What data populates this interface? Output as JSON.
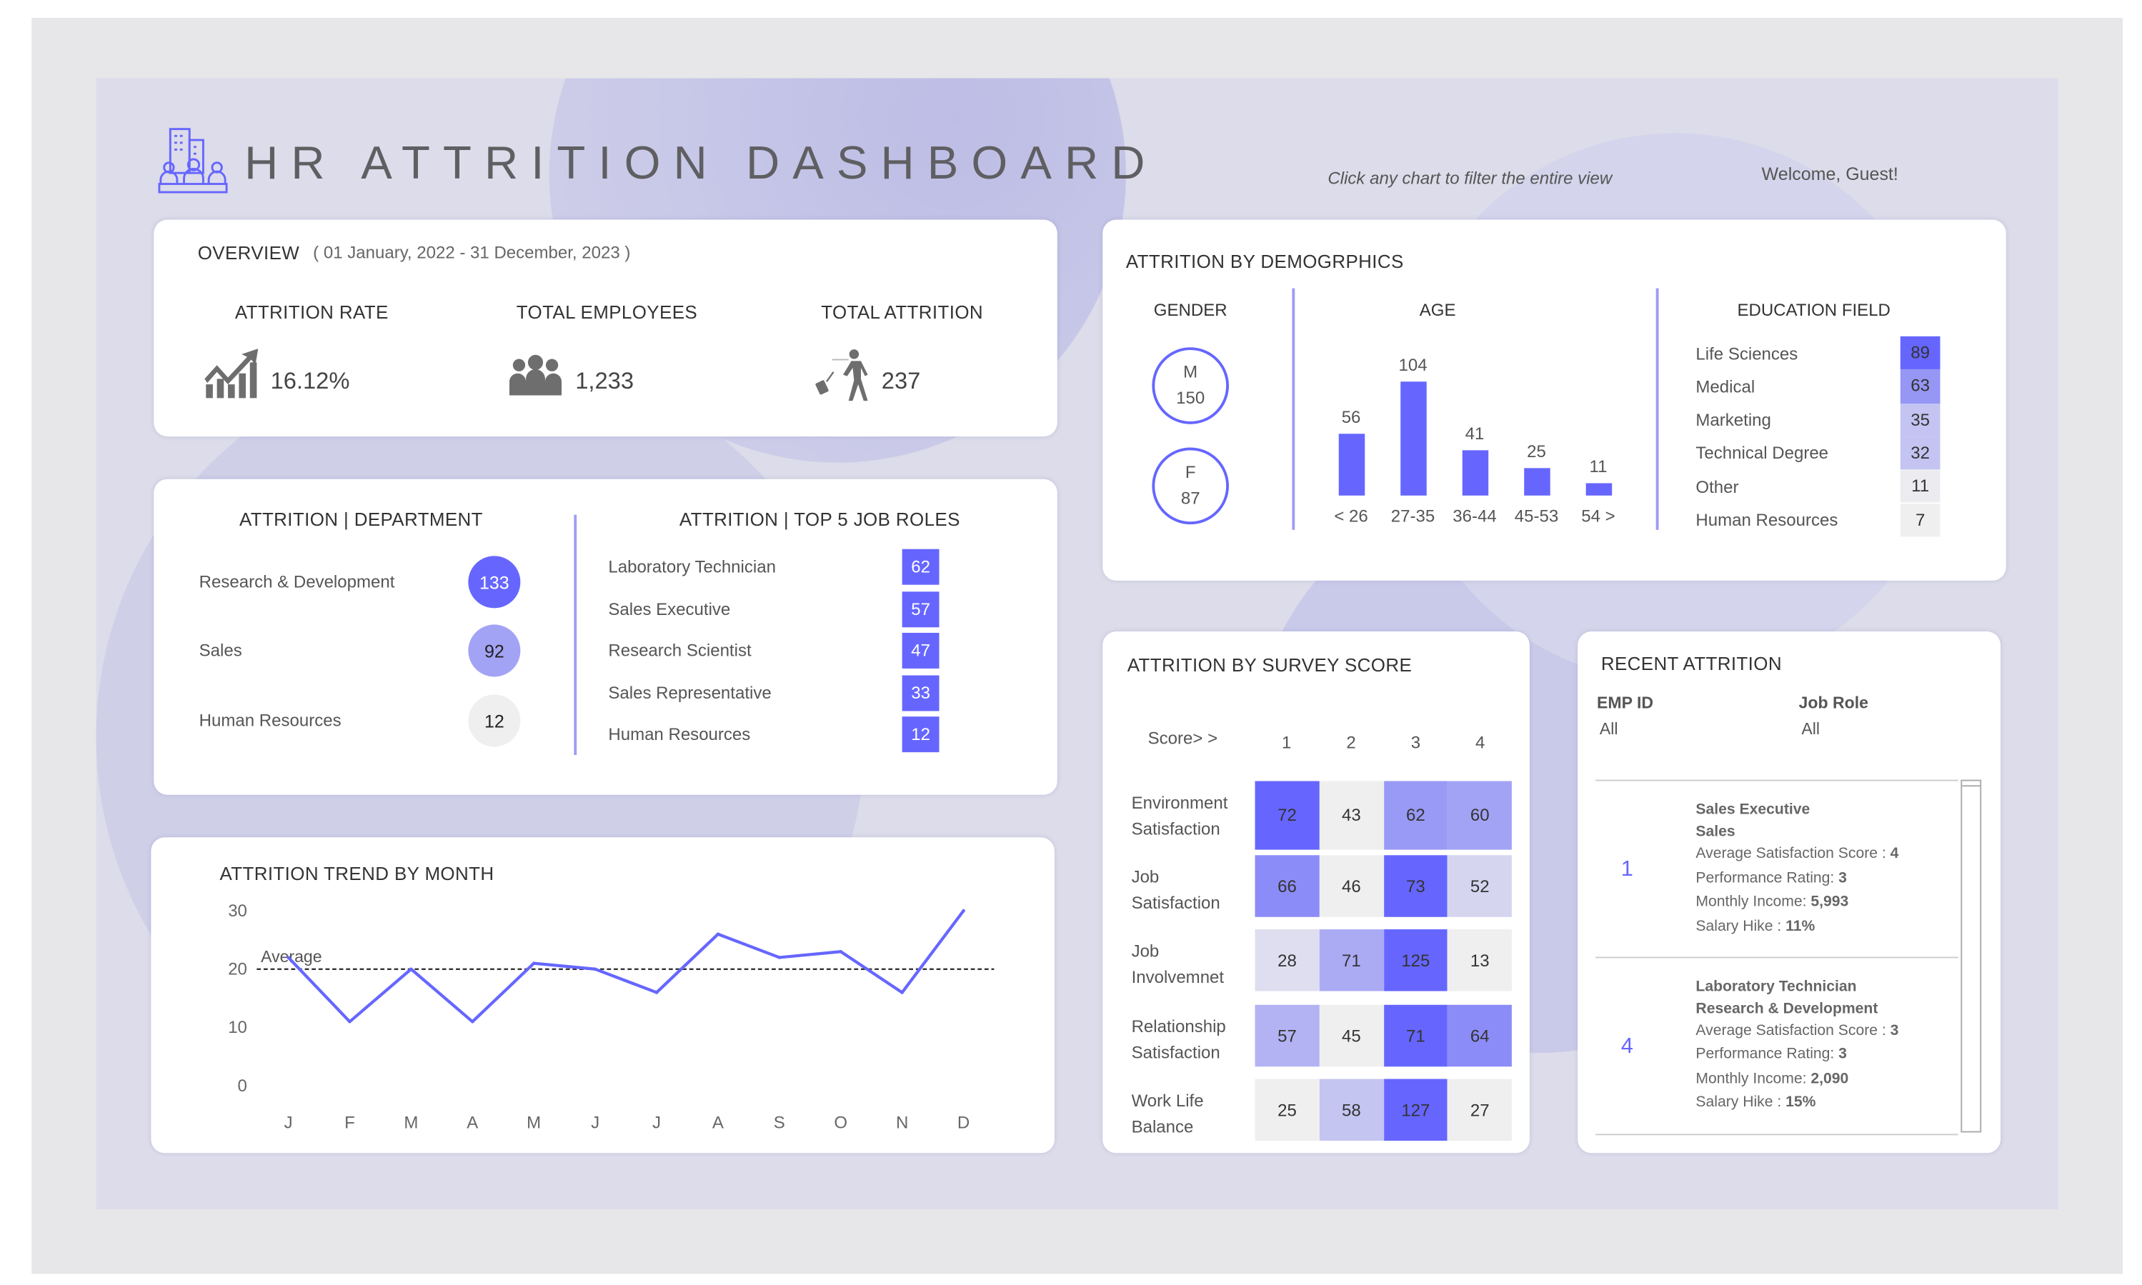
{
  "header": {
    "title": "HR ATTRITION DASHBOARD",
    "hint": "Click any chart to filter the entire view",
    "welcome": "Welcome, Guest!",
    "logo_icon": "building-people-icon",
    "accent_color": "#6666ff"
  },
  "overview": {
    "title": "OVERVIEW",
    "date_range": "( 01 January, 2022 - 31 December, 2023 )",
    "kpis": [
      {
        "label": "ATTRITION RATE",
        "value": "16.12%",
        "icon": "trend-up-icon"
      },
      {
        "label": "TOTAL EMPLOYEES",
        "value": "1,233",
        "icon": "people-group-icon"
      },
      {
        "label": "TOTAL ATTRITION",
        "value": "237",
        "icon": "person-leaving-icon"
      }
    ]
  },
  "department": {
    "title": "ATTRITION | DEPARTMENT",
    "items": [
      {
        "label": "Research & Development",
        "value": "133",
        "color": "#6666ff",
        "text_color": "#ffffff"
      },
      {
        "label": "Sales",
        "value": "92",
        "color": "#a3a3f5",
        "text_color": "#222222"
      },
      {
        "label": "Human Resources",
        "value": "12",
        "color": "#efefef",
        "text_color": "#222222"
      }
    ]
  },
  "job_roles": {
    "title": "ATTRITION | TOP 5 JOB ROLES",
    "items": [
      {
        "label": "Laboratory Technician",
        "value": "62"
      },
      {
        "label": "Sales Executive",
        "value": "57"
      },
      {
        "label": "Research Scientist",
        "value": "47"
      },
      {
        "label": "Sales Representative",
        "value": "33"
      },
      {
        "label": "Human Resources",
        "value": "12"
      }
    ]
  },
  "chart_data": {
    "type": "line",
    "title": "ATTRITION TREND BY MONTH",
    "categories": [
      "J",
      "F",
      "M",
      "A",
      "M",
      "J",
      "J",
      "A",
      "S",
      "O",
      "N",
      "D"
    ],
    "values": [
      22,
      11,
      20,
      11,
      21,
      20,
      16,
      26,
      22,
      23,
      16,
      30
    ],
    "y_ticks": [
      "0",
      "10",
      "20",
      "30"
    ],
    "ylim": [
      0,
      30
    ],
    "reference_line": {
      "label": "Average",
      "value": 20
    },
    "grid": false,
    "line_color": "#6666ff"
  },
  "demographics": {
    "title": "ATTRITION BY DEMOGRPHICS",
    "gender": {
      "title": "GENDER",
      "items": [
        {
          "label": "M",
          "value": "150"
        },
        {
          "label": "F",
          "value": "87"
        }
      ]
    },
    "age": {
      "title": "AGE",
      "categories": [
        "< 26",
        "27-35",
        "36-44",
        "45-53",
        "54 >"
      ],
      "values": [
        56,
        104,
        41,
        25,
        11
      ]
    },
    "education": {
      "title": "EDUCATION FIELD",
      "items": [
        {
          "label": "Life Sciences",
          "value": "89",
          "color": "#6666ff"
        },
        {
          "label": "Medical",
          "value": "63",
          "color": "#9696f5"
        },
        {
          "label": "Marketing",
          "value": "35",
          "color": "#c4c4f2"
        },
        {
          "label": "Technical Degree",
          "value": "32",
          "color": "#c4c4f2"
        },
        {
          "label": "Other",
          "value": "11",
          "color": "#ececf0"
        },
        {
          "label": "Human Resources",
          "value": "7",
          "color": "#efefef"
        }
      ]
    }
  },
  "survey": {
    "title": "ATTRITION BY SURVEY SCORE",
    "score_label": "Score> >",
    "columns": [
      "1",
      "2",
      "3",
      "4"
    ],
    "rows": [
      {
        "label1": "Environment",
        "label2": "Satisfaction",
        "values": [
          "72",
          "43",
          "62",
          "60"
        ],
        "colors": [
          "#6666ff",
          "#efefef",
          "#9999f6",
          "#a3a3f5"
        ]
      },
      {
        "label1": "Job",
        "label2": "Satisfaction",
        "values": [
          "66",
          "46",
          "73",
          "52"
        ],
        "colors": [
          "#8c8cf8",
          "#efefef",
          "#6666ff",
          "#d5d5f0"
        ]
      },
      {
        "label1": "Job",
        "label2": "Involvemnet",
        "values": [
          "28",
          "71",
          "125",
          "13"
        ],
        "colors": [
          "#dedef0",
          "#ababf4",
          "#6666ff",
          "#efefef"
        ]
      },
      {
        "label1": "Relationship",
        "label2": "Satisfaction",
        "values": [
          "57",
          "45",
          "71",
          "64"
        ],
        "colors": [
          "#b3b3f4",
          "#efefef",
          "#6666ff",
          "#8c8cf8"
        ]
      },
      {
        "label1": "Work Life",
        "label2": "Balance",
        "values": [
          "25",
          "58",
          "127",
          "27"
        ],
        "colors": [
          "#efefef",
          "#c5c5f2",
          "#6666ff",
          "#efefef"
        ]
      }
    ]
  },
  "recent": {
    "title": "RECENT ATTRITION",
    "filters": [
      {
        "label": "EMP ID",
        "value": "All"
      },
      {
        "label": "Job Role",
        "value": "All"
      }
    ],
    "rows": [
      {
        "id": "1",
        "role": "Sales Executive",
        "dept": "Sales",
        "sat_label": "Average Satisfaction Score : ",
        "sat": "4",
        "perf_label": "Performance Rating:  ",
        "perf": "3",
        "income_label": "Monthly Income: ",
        "income": "5,993",
        "hike_label": "Salary Hike : ",
        "hike": "11%"
      },
      {
        "id": "4",
        "role": "Laboratory Technician",
        "dept": "Research & Development",
        "sat_label": "Average Satisfaction Score : ",
        "sat": "3",
        "perf_label": "Performance Rating:  ",
        "perf": "3",
        "income_label": "Monthly Income: ",
        "income": "2,090",
        "hike_label": "Salary Hike : ",
        "hike": "15%"
      }
    ]
  }
}
